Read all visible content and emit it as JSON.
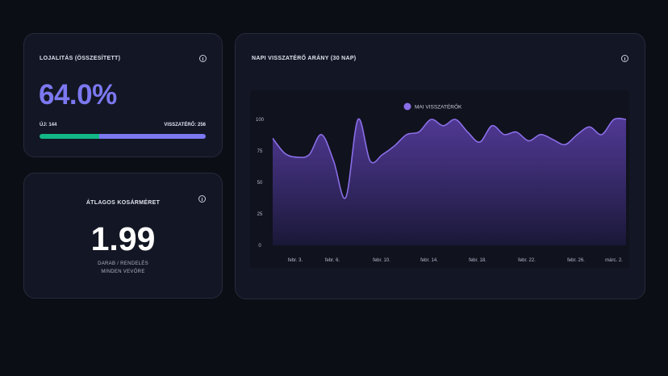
{
  "loyalty": {
    "title": "Lojalitás (összesített)",
    "percent": "64.0%",
    "new_label": "ÚJ: 144",
    "returning_label": "VISSZATÉRŐ: 256",
    "new_count": 144,
    "returning_count": 256,
    "colors": {
      "accent": "#7b78f0",
      "new": "#12b886"
    }
  },
  "basket": {
    "title": "Átlagos kosárméret",
    "value": "1.99",
    "line1": "DARAB / RENDELÉS",
    "line2": "MINDEN VEVŐRE"
  },
  "chart_card": {
    "title": "Napi visszatérő arány (30 nap)"
  },
  "icons": {
    "info": "info-icon"
  },
  "chart_data": {
    "type": "area",
    "title": "Napi visszatérő arány (30 nap)",
    "legend": "MAI VISSZATÉRŐK",
    "legend_position": "top-center",
    "ylim": [
      0,
      100
    ],
    "yticks": [
      0,
      25,
      50,
      75,
      100
    ],
    "xtick_labels": [
      "febr. 3.",
      "febr. 6.",
      "febr. 10.",
      "febr. 14.",
      "febr. 18.",
      "febr. 22.",
      "febr. 26.",
      "márc. 2."
    ],
    "x": [
      "febr. 1.",
      "febr. 2.",
      "febr. 3.",
      "febr. 4.",
      "febr. 5.",
      "febr. 6.",
      "febr. 7.",
      "febr. 8.",
      "febr. 9.",
      "febr. 10.",
      "febr. 11.",
      "febr. 12.",
      "febr. 13.",
      "febr. 14.",
      "febr. 15.",
      "febr. 16.",
      "febr. 17.",
      "febr. 18.",
      "febr. 19.",
      "febr. 20.",
      "febr. 21.",
      "febr. 22.",
      "febr. 23.",
      "febr. 24.",
      "febr. 25.",
      "febr. 26.",
      "febr. 27.",
      "febr. 28.",
      "márc. 1.",
      "márc. 2."
    ],
    "series": [
      {
        "name": "MAI VISSZATÉRŐK",
        "color": "#8a6ee6",
        "values": [
          85,
          73,
          70,
          72,
          88,
          67,
          38,
          100,
          67,
          72,
          79,
          88,
          90,
          100,
          95,
          100,
          90,
          82,
          95,
          88,
          90,
          83,
          88,
          84,
          80,
          88,
          94,
          88,
          100,
          100
        ]
      }
    ],
    "grid": false
  }
}
